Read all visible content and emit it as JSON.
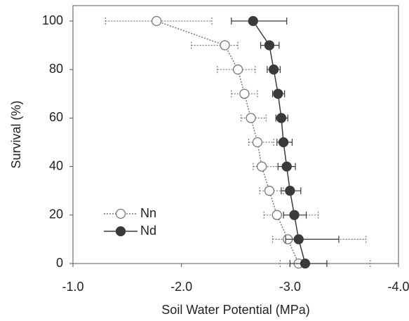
{
  "chart_data": {
    "type": "scatter",
    "xlabel": "Soil Water Potential (MPa)",
    "ylabel": "Survival (%)",
    "xlim": [
      -1,
      -4
    ],
    "ylim": [
      0,
      100
    ],
    "xticks": [
      {
        "value": -1,
        "label": "-1.0"
      },
      {
        "value": -2,
        "label": "-2.0"
      },
      {
        "value": -3,
        "label": "-3.0"
      },
      {
        "value": -4,
        "label": "-4.0"
      }
    ],
    "yticks": [
      0,
      20,
      40,
      60,
      80,
      100
    ],
    "legend_loc": "lower left",
    "series": [
      {
        "name": "Nn",
        "color": "#777777",
        "marker": "open",
        "line": "dotted",
        "x": [
          -1.77,
          -2.4,
          -2.52,
          -2.58,
          -2.64,
          -2.7,
          -2.74,
          -2.81,
          -2.88,
          -2.98,
          -3.08
        ],
        "values": [
          100,
          90,
          80,
          70,
          60,
          50,
          40,
          30,
          20,
          10,
          0
        ],
        "xerr_upper": [
          0.47,
          0.31,
          0.19,
          0.12,
          0.09,
          0.08,
          0.08,
          0.09,
          0.12,
          0.14,
          0.17
        ],
        "xerr_lower": [
          0.51,
          0.12,
          0.16,
          0.12,
          0.14,
          0.15,
          0.15,
          0.13,
          0.38,
          0.72,
          0.66
        ]
      },
      {
        "name": "Nd",
        "color": "#3a3a3a",
        "marker": "filled",
        "line": "solid",
        "x": [
          -2.66,
          -2.81,
          -2.85,
          -2.89,
          -2.92,
          -2.94,
          -2.97,
          -3.0,
          -3.04,
          -3.08,
          -3.14
        ],
        "values": [
          100,
          90,
          80,
          70,
          60,
          50,
          40,
          30,
          20,
          10,
          0
        ],
        "xerr_upper": [
          0.2,
          0.08,
          0.06,
          0.05,
          0.05,
          0.06,
          0.08,
          0.08,
          0.1,
          0.12,
          0.14
        ],
        "xerr_lower": [
          0.31,
          0.09,
          0.06,
          0.06,
          0.06,
          0.08,
          0.08,
          0.1,
          0.11,
          0.37,
          0.2
        ]
      }
    ]
  }
}
